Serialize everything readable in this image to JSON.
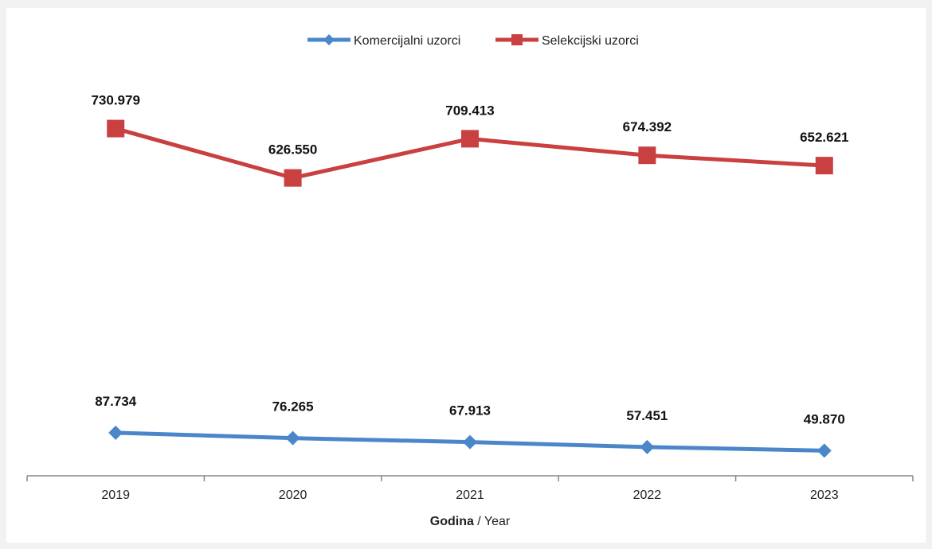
{
  "chart_data": {
    "type": "line",
    "categories": [
      "2019",
      "2020",
      "2021",
      "2022",
      "2023"
    ],
    "series": [
      {
        "name": "Komercijalni uzorci",
        "values": [
          87734,
          76265,
          67913,
          57451,
          49870
        ],
        "labels": [
          "87.734",
          "76.265",
          "67.913",
          "57.451",
          "49.870"
        ],
        "color": "#4a86c8",
        "marker": "diamond"
      },
      {
        "name": "Selekcijski uzorci",
        "values": [
          730979,
          626550,
          709413,
          674392,
          652621
        ],
        "labels": [
          "730.979",
          "626.550",
          "709.413",
          "674.392",
          "652.621"
        ],
        "color": "#c94040",
        "marker": "square"
      }
    ],
    "xlabel": {
      "bold": "Godina",
      "rest": " / Year"
    },
    "ylabel": "",
    "title": "",
    "grid": false,
    "legend_position": "top-center"
  }
}
